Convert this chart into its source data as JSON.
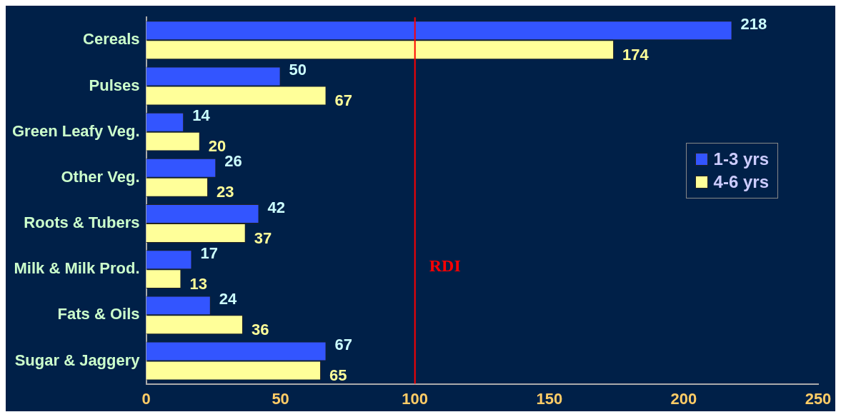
{
  "chart_data": {
    "type": "bar",
    "orientation": "horizontal",
    "categories": [
      "Cereals",
      "Pulses",
      "Green Leafy Veg.",
      "Other Veg.",
      "Roots & Tubers",
      "Milk & Milk Prod.",
      "Fats & Oils",
      "Sugar & Jaggery"
    ],
    "series": [
      {
        "name": "1-3 yrs",
        "color": "#3355ff",
        "values": [
          218,
          50,
          14,
          26,
          42,
          17,
          24,
          67
        ]
      },
      {
        "name": "4-6 yrs",
        "color": "#ffff99",
        "values": [
          174,
          67,
          20,
          23,
          37,
          13,
          36,
          65
        ]
      }
    ],
    "xlim": [
      0,
      250
    ],
    "xticks": [
      0,
      50,
      100,
      150,
      200,
      250
    ],
    "ref_lines": [
      {
        "axis": "x",
        "value": 100,
        "label": "RDI",
        "color": "#ff0000"
      }
    ],
    "data_labels": true,
    "grid": false,
    "legend": "right"
  }
}
